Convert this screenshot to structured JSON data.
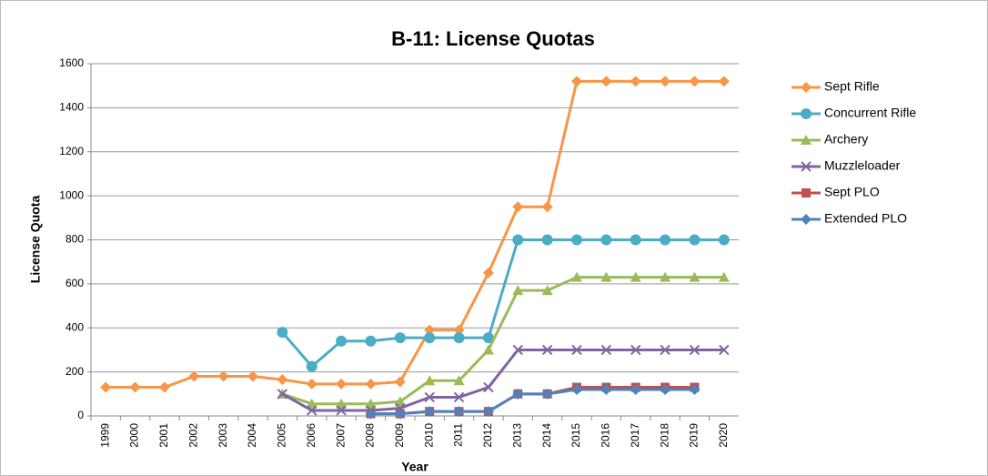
{
  "chart_data": {
    "type": "line",
    "title": "B-11: License Quotas",
    "x_label": "Year",
    "y_label": "License Quota",
    "categories": [
      "1999",
      "2000",
      "2001",
      "2002",
      "2003",
      "2004",
      "2005",
      "2006",
      "2007",
      "2008",
      "2009",
      "2010",
      "2011",
      "2012",
      "2013",
      "2014",
      "2015",
      "2016",
      "2017",
      "2018",
      "2019",
      "2020"
    ],
    "series": [
      {
        "name": "Sept Rifle",
        "color": "#f79646",
        "marker": "diamond",
        "values": [
          130,
          130,
          130,
          180,
          180,
          180,
          165,
          145,
          145,
          145,
          155,
          390,
          390,
          650,
          950,
          950,
          1520,
          1520,
          1520,
          1520,
          1520,
          1520
        ]
      },
      {
        "name": "Concurrent Rifle",
        "color": "#4bacc6",
        "marker": "circle",
        "values": [
          null,
          null,
          null,
          null,
          null,
          null,
          380,
          225,
          340,
          340,
          355,
          355,
          355,
          355,
          800,
          800,
          800,
          800,
          800,
          800,
          800,
          800
        ]
      },
      {
        "name": "Archery",
        "color": "#9bbb59",
        "marker": "triangle",
        "values": [
          null,
          null,
          null,
          null,
          null,
          null,
          100,
          55,
          55,
          55,
          65,
          160,
          160,
          300,
          570,
          570,
          630,
          630,
          630,
          630,
          630,
          630
        ]
      },
      {
        "name": "Muzzleloader",
        "color": "#8064a2",
        "marker": "x",
        "values": [
          null,
          null,
          null,
          null,
          null,
          null,
          100,
          25,
          25,
          25,
          35,
          85,
          85,
          130,
          300,
          300,
          300,
          300,
          300,
          300,
          300,
          300
        ]
      },
      {
        "name": "Sept PLO",
        "color": "#c0504d",
        "marker": "square",
        "values": [
          null,
          null,
          null,
          null,
          null,
          null,
          null,
          null,
          null,
          10,
          10,
          20,
          20,
          20,
          100,
          100,
          130,
          130,
          130,
          130,
          130,
          null
        ]
      },
      {
        "name": "Extended PLO",
        "color": "#4f81bd",
        "marker": "diamond",
        "values": [
          null,
          null,
          null,
          null,
          null,
          null,
          null,
          null,
          null,
          10,
          10,
          20,
          20,
          20,
          100,
          100,
          120,
          120,
          120,
          120,
          120,
          null
        ]
      }
    ],
    "ylim": [
      0,
      1600
    ],
    "yticks": [
      0,
      200,
      400,
      600,
      800,
      1000,
      1200,
      1400,
      1600
    ],
    "grid": true,
    "legend": "right"
  }
}
